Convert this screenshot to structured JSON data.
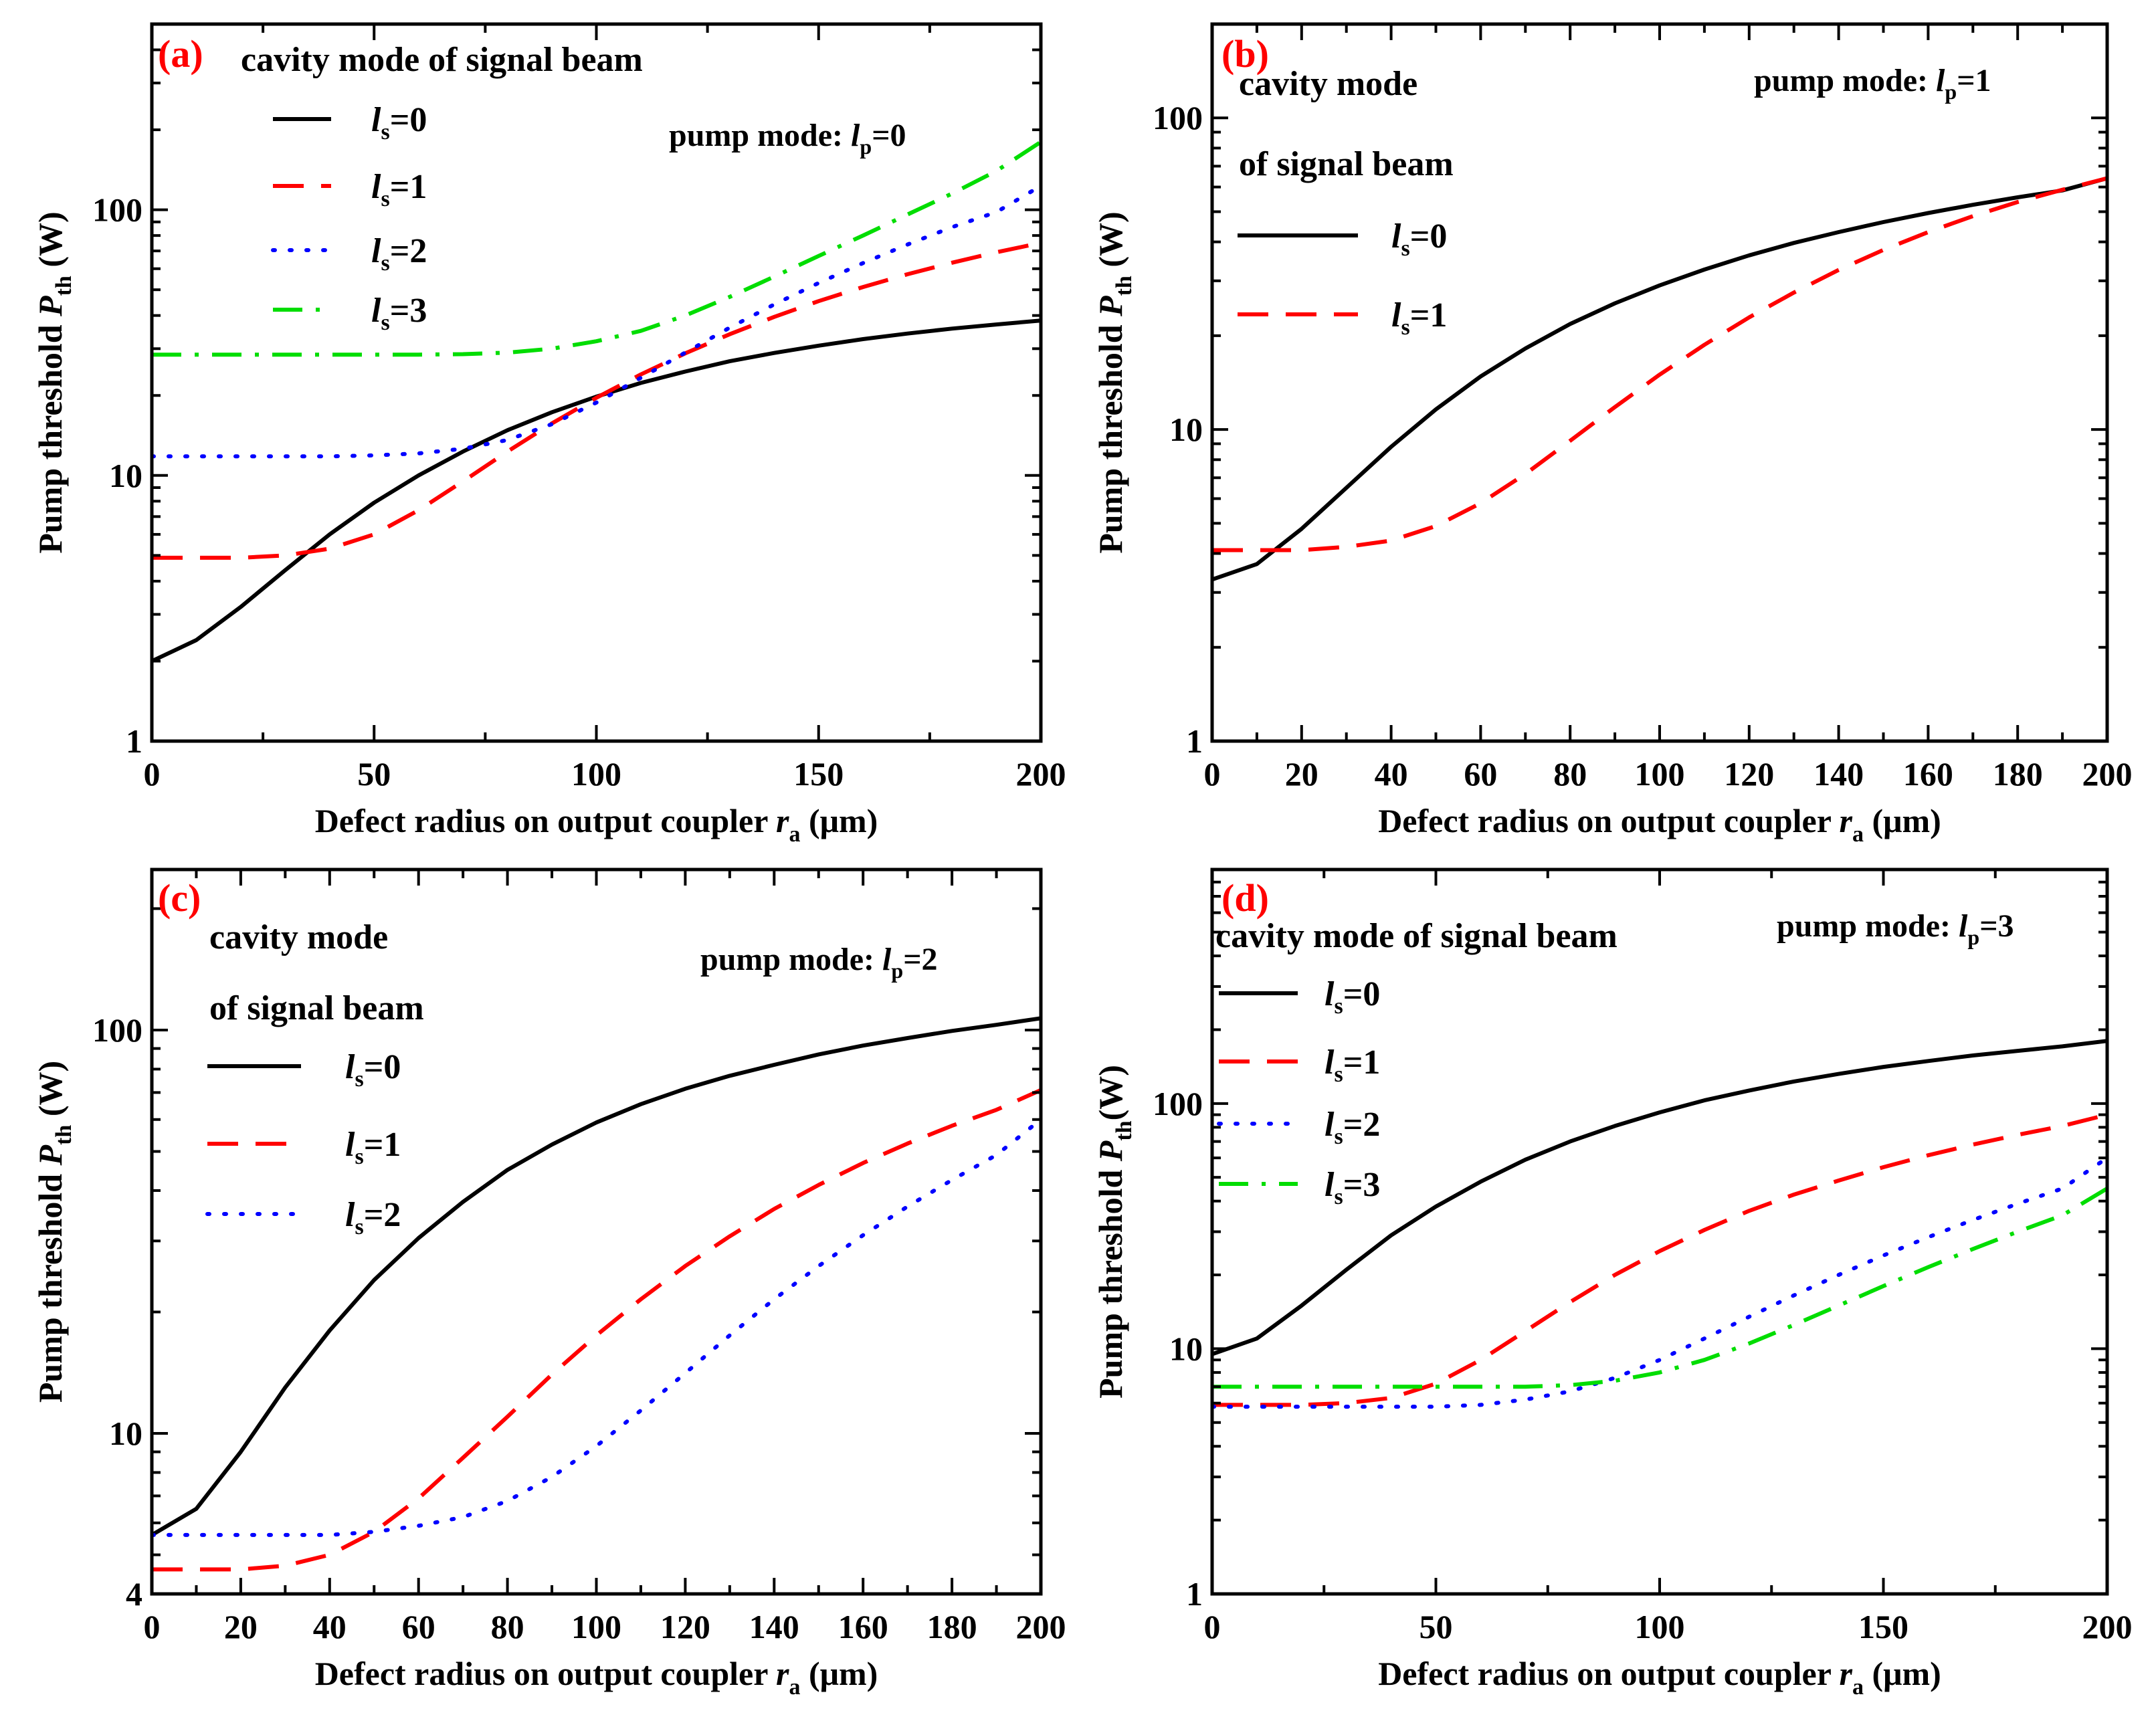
{
  "chart_data": [
    {
      "panel_label": "(a)",
      "type": "line",
      "yscale": "log",
      "xlim": [
        0,
        200
      ],
      "ylim": [
        1,
        500
      ],
      "xticks": [
        0,
        50,
        100,
        150,
        200
      ],
      "yticks": [
        1,
        10,
        100
      ],
      "xlabel": {
        "main": "Defect radius on output coupler ",
        "var": "r",
        "sub": "a",
        "unit": " (μm)"
      },
      "ylabel": {
        "main": "Pump threshold ",
        "var": "P",
        "sub": "th",
        "unit": " (W)"
      },
      "pump_mode": {
        "prefix": "pump mode: ",
        "var": "l",
        "sub": "p",
        "value": "=0"
      },
      "legend_title": [
        "cavity mode of signal beam"
      ],
      "series": [
        {
          "name": "ls=0",
          "var": "l",
          "sub": "s",
          "value": "=0",
          "color": "#000000",
          "dash": "solid",
          "x": [
            0,
            10,
            20,
            30,
            40,
            50,
            60,
            70,
            80,
            90,
            100,
            110,
            120,
            130,
            140,
            150,
            160,
            170,
            180,
            190,
            200
          ],
          "y": [
            2.0,
            2.4,
            3.2,
            4.4,
            6.0,
            7.9,
            10.0,
            12.3,
            14.8,
            17.3,
            19.8,
            22.3,
            24.6,
            26.9,
            28.9,
            30.8,
            32.6,
            34.2,
            35.7,
            37.0,
            38.3
          ]
        },
        {
          "name": "ls=1",
          "var": "l",
          "sub": "s",
          "value": "=1",
          "color": "#ff0000",
          "dash": "dashed",
          "x": [
            0,
            10,
            20,
            30,
            40,
            50,
            60,
            70,
            80,
            90,
            100,
            110,
            120,
            130,
            140,
            150,
            160,
            170,
            180,
            190,
            200
          ],
          "y": [
            4.9,
            4.9,
            4.9,
            5.0,
            5.3,
            6.0,
            7.4,
            9.5,
            12.3,
            15.7,
            19.6,
            24.0,
            28.8,
            34.0,
            39.5,
            45.3,
            51.2,
            57.2,
            63.2,
            69.2,
            75.0
          ]
        },
        {
          "name": "ls=2",
          "var": "l",
          "sub": "s",
          "value": "=2",
          "color": "#0000ff",
          "dash": "dotted",
          "x": [
            0,
            10,
            20,
            30,
            40,
            50,
            60,
            70,
            80,
            90,
            100,
            110,
            120,
            130,
            140,
            150,
            160,
            170,
            180,
            190,
            200
          ],
          "y": [
            11.8,
            11.8,
            11.8,
            11.8,
            11.8,
            11.9,
            12.1,
            12.6,
            13.6,
            15.6,
            18.8,
            23.3,
            29.0,
            36.0,
            44.0,
            53.0,
            63.0,
            74.0,
            86.0,
            98.0,
            123.0
          ]
        },
        {
          "name": "ls=3",
          "var": "l",
          "sub": "s",
          "value": "=3",
          "color": "#00dd00",
          "dash": "dashdot",
          "x": [
            0,
            10,
            20,
            30,
            40,
            50,
            60,
            70,
            80,
            90,
            100,
            110,
            120,
            130,
            140,
            150,
            160,
            170,
            180,
            190,
            200
          ],
          "y": [
            28.5,
            28.5,
            28.5,
            28.5,
            28.5,
            28.5,
            28.5,
            28.6,
            29.0,
            30.0,
            32.0,
            35.0,
            40.0,
            47.0,
            56.0,
            67.0,
            80.0,
            96.0,
            115.0,
            140.0,
            180.0
          ]
        }
      ]
    },
    {
      "panel_label": "(b)",
      "type": "line",
      "yscale": "log",
      "xlim": [
        0,
        200
      ],
      "ylim": [
        1,
        200
      ],
      "xticks": [
        0,
        20,
        40,
        60,
        80,
        100,
        120,
        140,
        160,
        180,
        200
      ],
      "yticks": [
        1,
        10,
        100
      ],
      "xlabel": {
        "main": "Defect radius on output coupler ",
        "var": "r",
        "sub": "a",
        "unit": " (μm)"
      },
      "ylabel": {
        "main": "Pump threshold ",
        "var": "P",
        "sub": "th",
        "unit": " (W)"
      },
      "pump_mode": {
        "prefix": "pump mode: ",
        "var": "l",
        "sub": "p",
        "value": "=1"
      },
      "legend_title": [
        "cavity mode",
        "of signal beam"
      ],
      "series": [
        {
          "name": "ls=0",
          "var": "l",
          "sub": "s",
          "value": "=0",
          "color": "#000000",
          "dash": "solid",
          "x": [
            0,
            10,
            20,
            30,
            40,
            50,
            60,
            70,
            80,
            90,
            100,
            110,
            120,
            130,
            140,
            150,
            160,
            170,
            180,
            190,
            200
          ],
          "y": [
            3.3,
            3.7,
            4.8,
            6.5,
            8.8,
            11.6,
            14.8,
            18.2,
            21.8,
            25.4,
            29.0,
            32.6,
            36.2,
            39.7,
            43.0,
            46.3,
            49.5,
            52.6,
            55.6,
            58.5,
            64.0
          ]
        },
        {
          "name": "ls=1",
          "var": "l",
          "sub": "s",
          "value": "=1",
          "color": "#ff0000",
          "dash": "dashed",
          "x": [
            0,
            10,
            20,
            30,
            40,
            50,
            60,
            70,
            80,
            90,
            100,
            110,
            120,
            130,
            140,
            150,
            160,
            170,
            180,
            190,
            200
          ],
          "y": [
            4.1,
            4.1,
            4.1,
            4.2,
            4.4,
            4.9,
            5.8,
            7.2,
            9.2,
            11.8,
            15.0,
            18.7,
            22.9,
            27.5,
            32.5,
            37.7,
            43.0,
            48.4,
            53.7,
            58.8,
            64.0
          ]
        }
      ]
    },
    {
      "panel_label": "(c)",
      "type": "line",
      "yscale": "log",
      "xlim": [
        0,
        200
      ],
      "ylim": [
        4,
        250
      ],
      "xticks": [
        0,
        20,
        40,
        60,
        80,
        100,
        120,
        140,
        160,
        180,
        200
      ],
      "yticks": [
        4,
        10,
        100
      ],
      "xlabel": {
        "main": "Defect radius on output coupler ",
        "var": "r",
        "sub": "a",
        "unit": " (μm)"
      },
      "ylabel": {
        "main": "Pump threshold ",
        "var": "P",
        "sub": "th",
        "unit": " (W)"
      },
      "pump_mode": {
        "prefix": "pump mode: ",
        "var": "l",
        "sub": "p",
        "value": "=2"
      },
      "legend_title": [
        "cavity mode",
        "of signal beam"
      ],
      "series": [
        {
          "name": "ls=0",
          "var": "l",
          "sub": "s",
          "value": "=0",
          "color": "#000000",
          "dash": "solid",
          "x": [
            0,
            10,
            20,
            30,
            40,
            50,
            60,
            70,
            80,
            90,
            100,
            110,
            120,
            130,
            140,
            150,
            160,
            170,
            180,
            190,
            200
          ],
          "y": [
            5.6,
            6.5,
            9.0,
            13.0,
            18.0,
            24.0,
            30.5,
            37.5,
            45.0,
            52.0,
            59.0,
            65.5,
            71.5,
            77.0,
            82.0,
            87.0,
            91.5,
            95.5,
            99.5,
            103.0,
            107.0
          ]
        },
        {
          "name": "ls=1",
          "var": "l",
          "sub": "s",
          "value": "=1",
          "color": "#ff0000",
          "dash": "dashed",
          "x": [
            0,
            10,
            20,
            30,
            40,
            50,
            60,
            70,
            80,
            90,
            100,
            110,
            120,
            130,
            140,
            150,
            160,
            170,
            180,
            190,
            200
          ],
          "y": [
            4.6,
            4.6,
            4.6,
            4.7,
            5.0,
            5.7,
            6.9,
            8.7,
            11.0,
            14.0,
            17.5,
            21.5,
            26.0,
            30.8,
            36.0,
            41.3,
            46.8,
            52.3,
            57.9,
            63.4,
            71.0
          ]
        },
        {
          "name": "ls=2",
          "var": "l",
          "sub": "s",
          "value": "=2",
          "color": "#0000ff",
          "dash": "dotted",
          "x": [
            0,
            10,
            20,
            30,
            40,
            50,
            60,
            70,
            80,
            90,
            100,
            110,
            120,
            130,
            140,
            150,
            160,
            170,
            180,
            190,
            200
          ],
          "y": [
            5.6,
            5.6,
            5.6,
            5.6,
            5.6,
            5.7,
            5.9,
            6.2,
            6.8,
            7.8,
            9.3,
            11.4,
            14.1,
            17.5,
            21.5,
            26.0,
            31.0,
            36.5,
            42.5,
            49.0,
            60.0
          ]
        }
      ]
    },
    {
      "panel_label": "(d)",
      "type": "line",
      "yscale": "log",
      "xlim": [
        0,
        200
      ],
      "ylim": [
        1,
        900
      ],
      "xticks": [
        0,
        50,
        100,
        150,
        200
      ],
      "yticks": [
        1,
        10,
        100
      ],
      "xlabel": {
        "main": "Defect radius on output coupler ",
        "var": "r",
        "sub": "a",
        "unit": " (μm)"
      },
      "ylabel": {
        "main": "Pump threshold ",
        "var": "P",
        "sub": "th",
        "unit": "(W)"
      },
      "pump_mode": {
        "prefix": "pump mode: ",
        "var": "l",
        "sub": "p",
        "value": "=3"
      },
      "legend_title": [
        "cavity mode of signal beam"
      ],
      "series": [
        {
          "name": "ls=0",
          "var": "l",
          "sub": "s",
          "value": "=0",
          "color": "#000000",
          "dash": "solid",
          "x": [
            0,
            10,
            20,
            30,
            40,
            50,
            60,
            70,
            80,
            90,
            100,
            110,
            120,
            130,
            140,
            150,
            160,
            170,
            180,
            190,
            200
          ],
          "y": [
            9.5,
            11.0,
            15.0,
            21.0,
            29.0,
            38.0,
            48.0,
            59.0,
            70.0,
            81.0,
            92.0,
            103.0,
            113.0,
            123.0,
            132.0,
            141.0,
            149.0,
            157.0,
            164.0,
            171.0,
            180.0
          ]
        },
        {
          "name": "ls=1",
          "var": "l",
          "sub": "s",
          "value": "=1",
          "color": "#ff0000",
          "dash": "dashed",
          "x": [
            0,
            10,
            20,
            30,
            40,
            50,
            60,
            70,
            80,
            90,
            100,
            110,
            120,
            130,
            140,
            150,
            160,
            170,
            180,
            190,
            200
          ],
          "y": [
            5.9,
            5.9,
            5.9,
            6.0,
            6.3,
            7.2,
            9.0,
            11.8,
            15.5,
            20.0,
            25.0,
            30.5,
            36.5,
            42.5,
            48.5,
            55.0,
            61.5,
            68.0,
            74.5,
            81.0,
            90.0
          ]
        },
        {
          "name": "ls=2",
          "var": "l",
          "sub": "s",
          "value": "=2",
          "color": "#0000ff",
          "dash": "dotted",
          "x": [
            0,
            10,
            20,
            30,
            40,
            50,
            60,
            70,
            80,
            90,
            100,
            110,
            120,
            130,
            140,
            150,
            160,
            170,
            180,
            190,
            200
          ],
          "y": [
            5.8,
            5.8,
            5.8,
            5.8,
            5.8,
            5.8,
            5.9,
            6.2,
            6.7,
            7.6,
            9.0,
            11.0,
            13.5,
            16.5,
            20.0,
            24.0,
            28.5,
            33.5,
            39.0,
            45.0,
            60.0
          ]
        },
        {
          "name": "ls=3",
          "var": "l",
          "sub": "s",
          "value": "=3",
          "color": "#00dd00",
          "dash": "dashdot",
          "x": [
            0,
            10,
            20,
            30,
            40,
            50,
            60,
            70,
            80,
            90,
            100,
            110,
            120,
            130,
            140,
            150,
            160,
            170,
            180,
            190,
            200
          ],
          "y": [
            7.0,
            7.0,
            7.0,
            7.0,
            7.0,
            7.0,
            7.0,
            7.0,
            7.1,
            7.4,
            8.0,
            9.0,
            10.5,
            12.5,
            15.0,
            18.0,
            21.5,
            25.5,
            30.0,
            35.0,
            45.0
          ]
        }
      ]
    }
  ]
}
